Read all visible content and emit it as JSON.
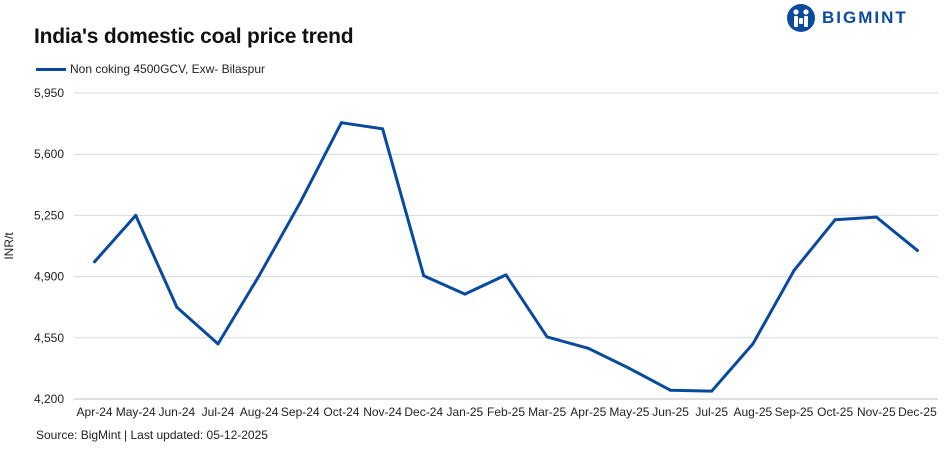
{
  "brand": {
    "name": "BIGMINT",
    "color": "#0a4a9e",
    "icon": "bigmint-logo-icon"
  },
  "source_text": "Source: BigMint | Last updated: 05-12-2025",
  "chart_data": {
    "type": "line",
    "title": "India's domestic coal price trend",
    "xlabel": "",
    "ylabel": "INR/t",
    "ylim": [
      4200,
      5950
    ],
    "yticks": [
      4200,
      4550,
      4900,
      5250,
      5600,
      5950
    ],
    "ytick_labels": [
      "4,200",
      "4,550",
      "4,900",
      "5,250",
      "5,600",
      "5,950"
    ],
    "grid": true,
    "legend_position": "top-left",
    "categories": [
      "Apr-24",
      "May-24",
      "Jun-24",
      "Jul-24",
      "Aug-24",
      "Sep-24",
      "Oct-24",
      "Nov-24",
      "Dec-24",
      "Jan-25",
      "Feb-25",
      "Mar-25",
      "Apr-25",
      "May-25",
      "Jun-25",
      "Jul-25",
      "Aug-25",
      "Sep-25",
      "Oct-25",
      "Nov-25",
      "Dec-25"
    ],
    "series": [
      {
        "name": "Non coking 4500GCV, Exw- Bilaspur",
        "color": "#0a4a9e",
        "values": [
          4985,
          5250,
          4725,
          4515,
          4905,
          5325,
          5780,
          5745,
          4905,
          4800,
          4910,
          4555,
          4490,
          4375,
          4250,
          4245,
          4515,
          4935,
          5225,
          5240,
          5050
        ]
      }
    ]
  }
}
